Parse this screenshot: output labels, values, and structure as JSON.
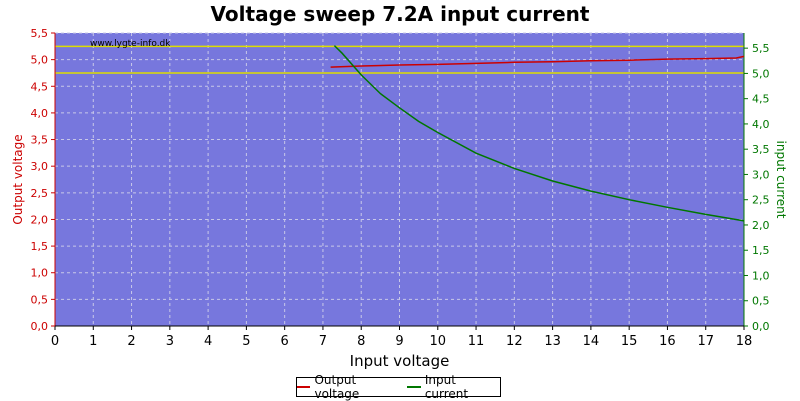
{
  "chart_data": {
    "type": "line",
    "title": "Voltage sweep 7.2A input current",
    "watermark": "www.lygte-info.dk",
    "xlabel": "Input voltage",
    "ylabel_left": "Output voltage",
    "ylabel_right": "input current",
    "xlim": [
      0,
      18
    ],
    "ylim_left": [
      0,
      5.5
    ],
    "ylim_right": [
      0,
      5.8
    ],
    "x_ticks": [
      "0",
      "1",
      "2",
      "3",
      "4",
      "5",
      "6",
      "7",
      "8",
      "9",
      "10",
      "11",
      "12",
      "13",
      "14",
      "15",
      "16",
      "17",
      "18"
    ],
    "y_left_ticks": [
      "0,0",
      "0,5",
      "1,0",
      "1,5",
      "2,0",
      "2,5",
      "3,0",
      "3,5",
      "4,0",
      "4,5",
      "5,0",
      "5,5"
    ],
    "y_right_ticks": [
      "0,0",
      "0,5",
      "1,0",
      "1,5",
      "2,0",
      "2,5",
      "3,0",
      "3,5",
      "4,0",
      "4,5",
      "5,0",
      "5,5"
    ],
    "reference_lines_left": [
      4.75,
      5.25
    ],
    "grid": true,
    "legend_position": "bottom-center",
    "series": [
      {
        "name": "Output voltage",
        "axis": "left",
        "color": "#cc0000",
        "x": [
          7.2,
          8,
          9,
          10,
          11,
          12,
          13,
          14,
          15,
          16,
          17,
          17.8,
          18
        ],
        "y": [
          4.86,
          4.88,
          4.9,
          4.91,
          4.93,
          4.95,
          4.96,
          4.98,
          4.99,
          5.01,
          5.02,
          5.03,
          5.06
        ]
      },
      {
        "name": "Input current",
        "axis": "right",
        "color": "#007700",
        "x": [
          7.3,
          7.5,
          8,
          8.5,
          9,
          9.5,
          10,
          11,
          12,
          13,
          14,
          15,
          16,
          17,
          18
        ],
        "y": [
          5.55,
          5.4,
          4.97,
          4.6,
          4.32,
          4.05,
          3.83,
          3.42,
          3.12,
          2.87,
          2.67,
          2.5,
          2.35,
          2.21,
          2.08
        ]
      }
    ],
    "colors": {
      "plot_background": "#7777dd",
      "grid": "#c8c8e8",
      "reference_line": "#dddd00",
      "left_axis_text": "#cc0000",
      "right_axis_text": "#007700"
    }
  }
}
